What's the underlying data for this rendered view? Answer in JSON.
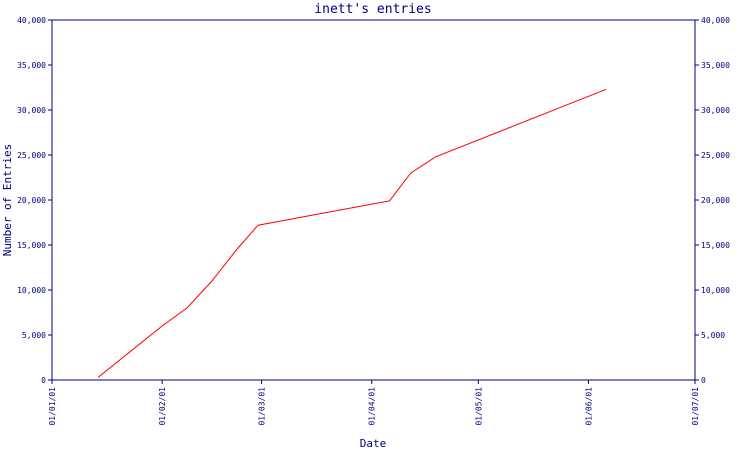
{
  "chart_data": {
    "type": "line",
    "title": "inett's entries",
    "xlabel": "Date",
    "ylabel": "Number of Entries",
    "x_ticks": [
      "01/01/01",
      "01/02/01",
      "01/03/01",
      "01/04/01",
      "01/05/01",
      "01/06/01",
      "01/07/01"
    ],
    "y_ticks": [
      "0",
      "5,000",
      "10,000",
      "15,000",
      "20,000",
      "25,000",
      "30,000",
      "35,000",
      "40,000"
    ],
    "y_right_ticks": [
      "0",
      "5,000",
      "10,000",
      "15,000",
      "20,000",
      "25,000",
      "30,000",
      "35,000",
      "40,000"
    ],
    "xlim": [
      "2001-01-01",
      "2001-07-01"
    ],
    "ylim": [
      0,
      40000
    ],
    "grid": false,
    "axis_color": "#000080",
    "series": [
      {
        "color": "#ff0000",
        "points": [
          {
            "x": "2001-01-14",
            "y": 300
          },
          {
            "x": "2001-02-01",
            "y": 6000
          },
          {
            "x": "2001-02-08",
            "y": 8000
          },
          {
            "x": "2001-02-15",
            "y": 11000
          },
          {
            "x": "2001-02-22",
            "y": 14500
          },
          {
            "x": "2001-02-28",
            "y": 17200
          },
          {
            "x": "2001-04-06",
            "y": 19900
          },
          {
            "x": "2001-04-12",
            "y": 23000
          },
          {
            "x": "2001-04-19",
            "y": 24800
          },
          {
            "x": "2001-06-06",
            "y": 32300
          }
        ]
      }
    ]
  }
}
